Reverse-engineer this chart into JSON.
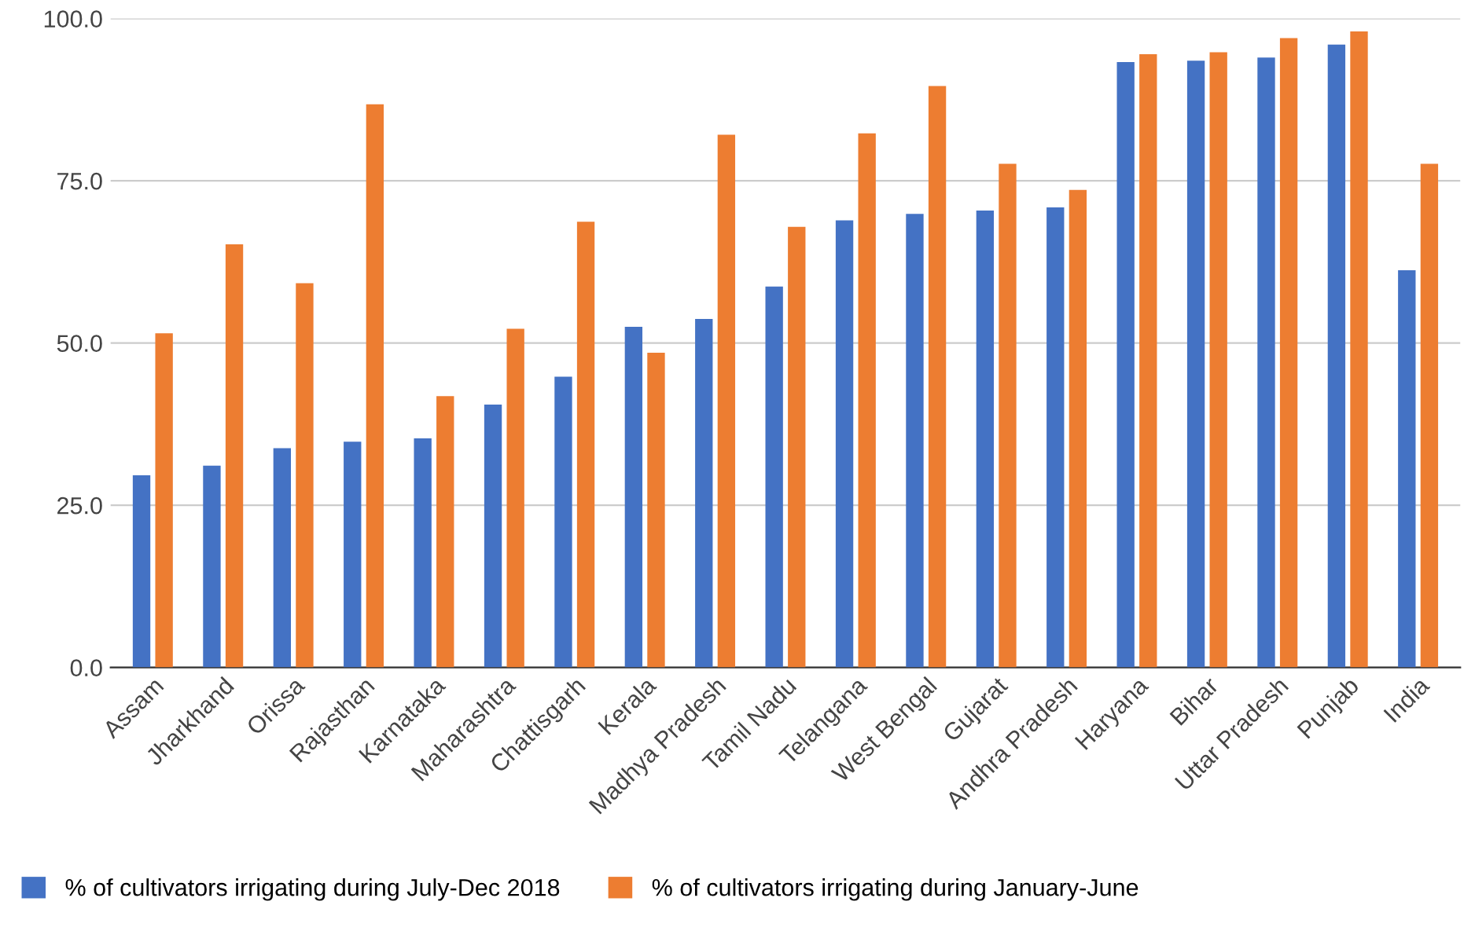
{
  "chart_data": {
    "type": "bar",
    "categories": [
      "Assam",
      "Jharkhand",
      "Orissa",
      "Rajasthan",
      "Karnataka",
      "Maharashtra",
      "Chattisgarh",
      "Kerala",
      "Madhya Pradesh",
      "Tamil Nadu",
      "Telangana",
      "West Bengal",
      "Gujarat",
      "Andhra Pradesh",
      "Haryana",
      "Bihar",
      "Uttar Pradesh",
      "Punjab",
      "India"
    ],
    "series": [
      {
        "name": "% of cultivators irrigating during July-Dec 2018",
        "color": "#4472c4",
        "values": [
          29.6,
          31.1,
          33.8,
          34.8,
          35.3,
          40.5,
          44.8,
          52.5,
          53.7,
          58.7,
          68.9,
          69.9,
          70.4,
          70.9,
          93.3,
          93.5,
          94.0,
          96.0,
          61.2
        ]
      },
      {
        "name": "% of cultivators irrigating during January-June",
        "color": "#ed7d31",
        "values": [
          51.5,
          65.2,
          59.2,
          86.8,
          41.8,
          52.2,
          68.7,
          48.5,
          82.1,
          67.9,
          82.3,
          89.6,
          77.6,
          73.6,
          94.5,
          94.8,
          97.0,
          98.0,
          77.6
        ]
      }
    ],
    "ylim": [
      0,
      100
    ],
    "yticks": [
      {
        "value": 0,
        "label": "0.0"
      },
      {
        "value": 25,
        "label": "25.0"
      },
      {
        "value": 50,
        "label": "50.0"
      },
      {
        "value": 75,
        "label": "75.0"
      },
      {
        "value": 100,
        "label": "100.0"
      }
    ],
    "grid": "y",
    "legend": "bottom"
  }
}
